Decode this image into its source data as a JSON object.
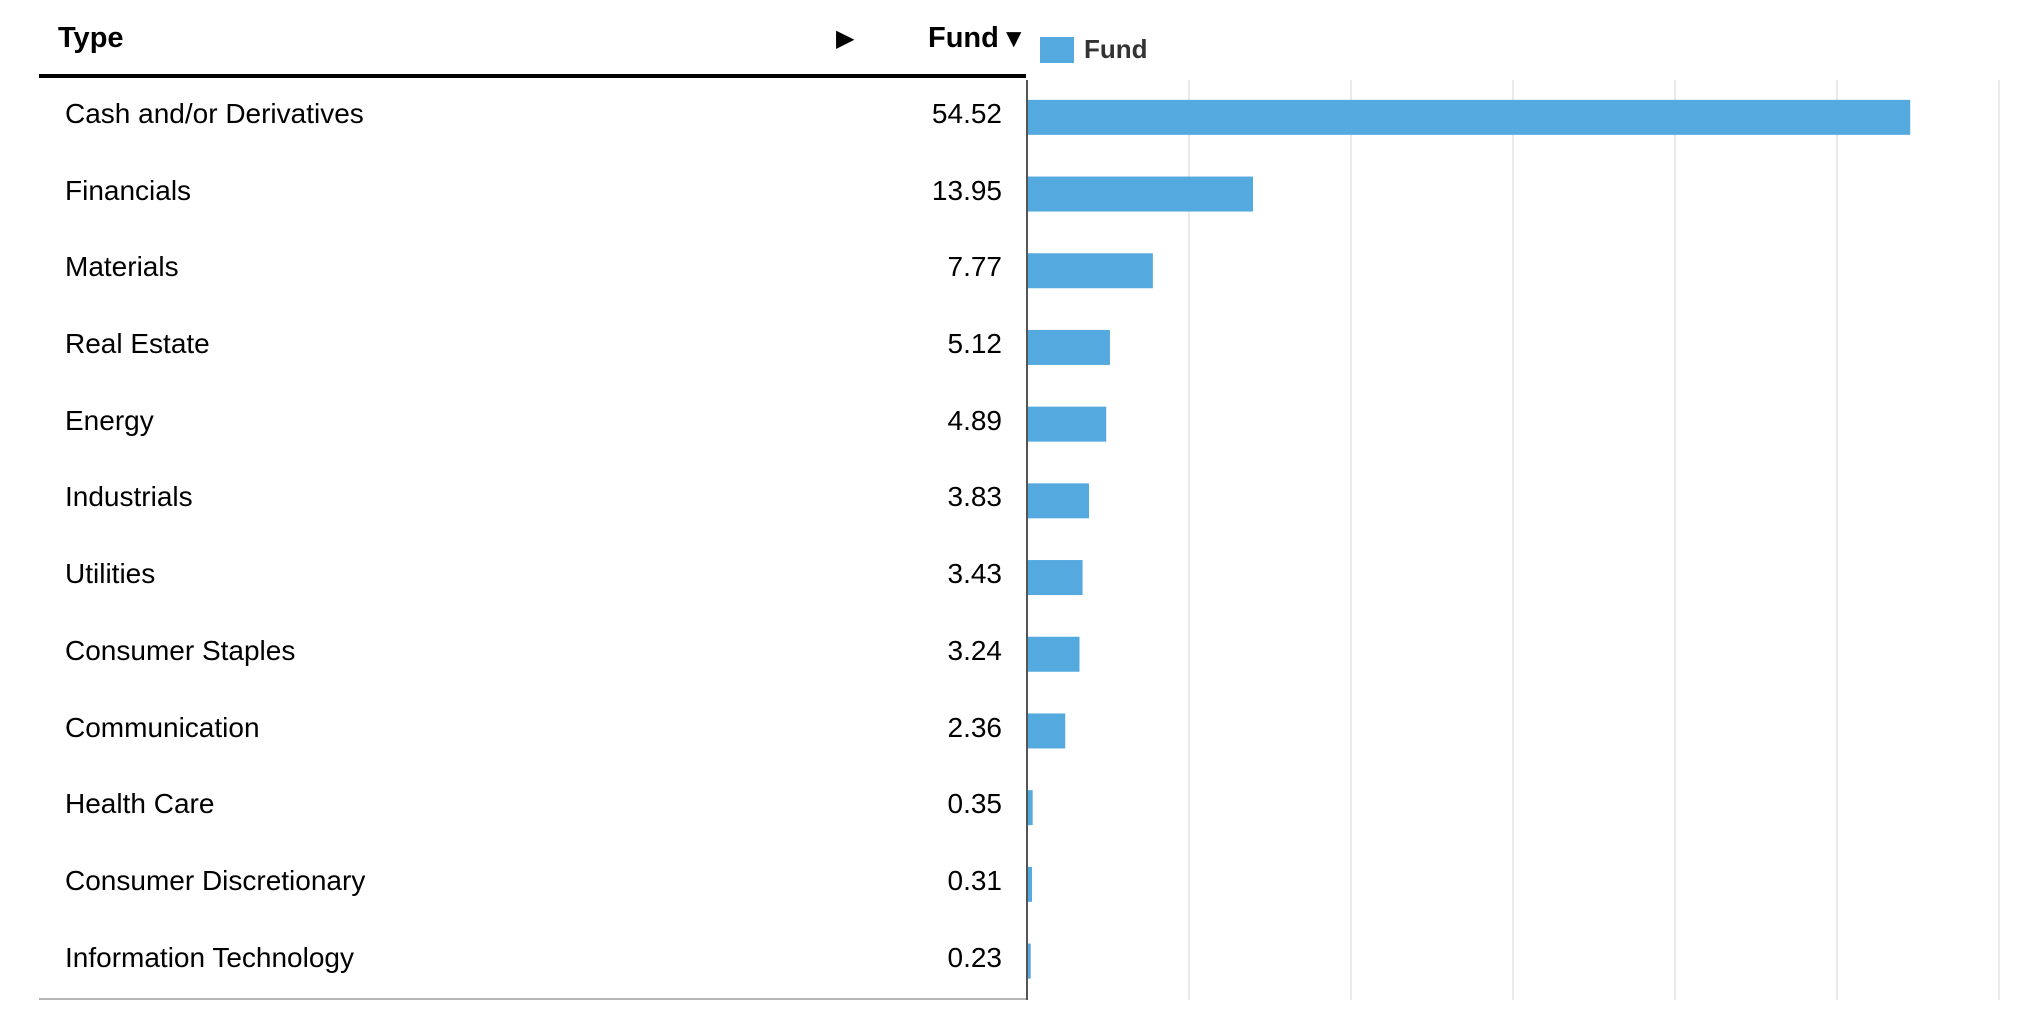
{
  "table": {
    "type_header": "Type",
    "expand_icon": "▶",
    "fund_header": "Fund",
    "sort_icon": "▼",
    "legend_label": "Fund",
    "bar_color": "#54aade"
  },
  "chart_data": {
    "type": "bar",
    "orientation": "horizontal",
    "categories": [
      "Cash and/or Derivatives",
      "Financials",
      "Materials",
      "Real Estate",
      "Energy",
      "Industrials",
      "Utilities",
      "Consumer Staples",
      "Communication",
      "Health Care",
      "Consumer Discretionary",
      "Information Technology"
    ],
    "series": [
      {
        "name": "Fund",
        "values": [
          54.52,
          13.95,
          7.77,
          5.12,
          4.89,
          3.83,
          3.43,
          3.24,
          2.36,
          0.35,
          0.31,
          0.23
        ]
      }
    ],
    "value_labels": [
      "54.52",
      "13.95",
      "7.77",
      "5.12",
      "4.89",
      "3.83",
      "3.43",
      "3.24",
      "2.36",
      "0.35",
      "0.31",
      "0.23"
    ],
    "xlim": [
      0,
      60
    ],
    "gridline_step": 10,
    "grid": true,
    "legend_position": "top-left"
  }
}
